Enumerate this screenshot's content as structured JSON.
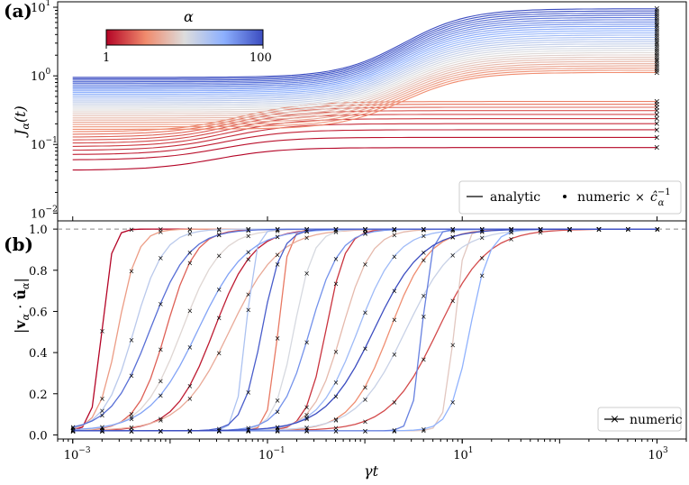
{
  "chart_data": [
    {
      "panel": "(a)",
      "type": "line",
      "ylabel": "J_α(t)",
      "y_scale": "log",
      "x_scale": "log",
      "xlim": [
        0.0007,
        2000
      ],
      "ylim": [
        0.0077,
        12
      ],
      "yticks": [
        0.01,
        0.1,
        1,
        10
      ],
      "ytick_labels": [
        "10",
        "10",
        "10",
        "10"
      ],
      "ytick_exponents": [
        "−2",
        "−1",
        "0",
        "1"
      ],
      "colorbar": {
        "label": "α",
        "min_label": "1",
        "max_label": "100",
        "low_color": "#b40426",
        "mid_color": "#dddddd",
        "high_color": "#3b4cc0"
      },
      "legend": {
        "placement": "lower-right",
        "entries": [
          "analytic",
          "numeric"
        ],
        "extra_entry_base": "ĉ",
        "extra_entry_sup": "−1",
        "extra_entry_sub": "α"
      },
      "series_count": 40,
      "series_summary": {
        "t_range": [
          0.001,
          1000
        ],
        "J_at_start_range": [
          0.042,
          0.95
        ],
        "J_at_end_range": [
          0.09,
          9.5
        ],
        "colors_high_alpha_plateau": "J grows from ~1 to ~10 after γt≈1",
        "colors_low_alpha_plateau": "J saturates between 0.09 and 0.45"
      }
    },
    {
      "panel": "(b)",
      "type": "line",
      "xlabel": "γt",
      "ylabel": "|v_α · û_α|",
      "x_scale": "log",
      "xlim": [
        0.0007,
        2000
      ],
      "ylim": [
        -0.02,
        1.04
      ],
      "reference_line": 1.0,
      "yticks": [
        0.0,
        0.2,
        0.4,
        0.6,
        0.8,
        1.0
      ],
      "ytick_labels": [
        "0.0",
        "0.2",
        "0.4",
        "0.6",
        "0.8",
        "1.0"
      ],
      "xticks": [
        0.001,
        0.1,
        10,
        1000
      ],
      "xtick_labels": [
        "10",
        "10",
        "10",
        "10"
      ],
      "xtick_exponents": [
        "−3",
        "−1",
        "1",
        "3"
      ],
      "legend": {
        "placement": "lower-right",
        "entries": [
          "numeric"
        ]
      },
      "series_count": 24,
      "series_summary": {
        "value_before_transition": 0.02,
        "value_after_transition": 1.0,
        "transition_range_gamma_t": [
          0.002,
          12
        ]
      }
    }
  ]
}
